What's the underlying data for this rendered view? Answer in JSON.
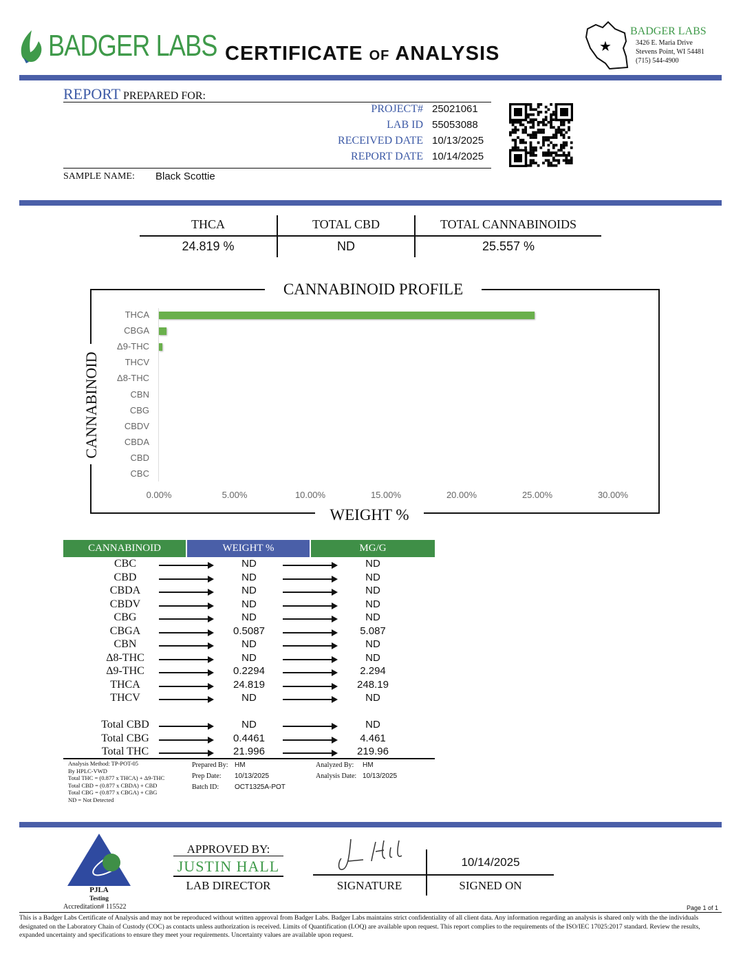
{
  "header": {
    "brand": "BADGER LABS",
    "title_main1": "CERTIFICATE",
    "title_of": "OF",
    "title_main2": "ANALYSIS",
    "address_brand": "BADGER LABS",
    "address1": "3426 E. Maria Drive",
    "address2": "Stevens Point, WI 54481",
    "phone": "(715) 544-4900",
    "colors": {
      "brand_green": "#3f9a4a",
      "accent_blue": "#4a5fa8"
    }
  },
  "report": {
    "prepared_big": "REPORT",
    "prepared_small": "PREPARED FOR:",
    "fields": [
      {
        "label": "PROJECT#",
        "value": "25021061"
      },
      {
        "label": "LAB ID",
        "value": "55053088"
      },
      {
        "label": "RECEIVED DATE",
        "value": "10/13/2025"
      },
      {
        "label": "REPORT DATE",
        "value": "10/14/2025"
      }
    ],
    "sample_label": "SAMPLE NAME:",
    "sample_name": "Black Scottie"
  },
  "summary": [
    {
      "label": "THCA",
      "value": "24.819 %"
    },
    {
      "label": "TOTAL CBD",
      "value": "ND"
    },
    {
      "label": "TOTAL CANNABINOIDS",
      "value": "25.557 %"
    }
  ],
  "chart_data": {
    "type": "bar",
    "orientation": "horizontal",
    "title": "CANNABINOID PROFILE",
    "xlabel": "WEIGHT %",
    "ylabel": "CANNABINOID",
    "categories": [
      "THCA",
      "CBGA",
      "Δ9-THC",
      "THCV",
      "Δ8-THC",
      "CBN",
      "CBG",
      "CBDV",
      "CBDA",
      "CBD",
      "CBC"
    ],
    "values": [
      24.819,
      0.5087,
      0.2294,
      0,
      0,
      0,
      0,
      0,
      0,
      0,
      0
    ],
    "xlim": [
      0,
      30
    ],
    "xticks": [
      "0.00%",
      "5.00%",
      "10.00%",
      "15.00%",
      "20.00%",
      "25.00%",
      "30.00%"
    ],
    "grid": false,
    "color": "#6ab04c"
  },
  "table": {
    "headers": [
      "CANNABINOID",
      "WEIGHT %",
      "MG/G"
    ],
    "rows": [
      [
        "CBC",
        "ND",
        "ND"
      ],
      [
        "CBD",
        "ND",
        "ND"
      ],
      [
        "CBDA",
        "ND",
        "ND"
      ],
      [
        "CBDV",
        "ND",
        "ND"
      ],
      [
        "CBG",
        "ND",
        "ND"
      ],
      [
        "CBGA",
        "0.5087",
        "5.087"
      ],
      [
        "CBN",
        "ND",
        "ND"
      ],
      [
        "Δ8-THC",
        "ND",
        "ND"
      ],
      [
        "Δ9-THC",
        "0.2294",
        "2.294"
      ],
      [
        "THCA",
        "24.819",
        "248.19"
      ],
      [
        "THCV",
        "ND",
        "ND"
      ]
    ],
    "totals": [
      [
        "Total CBD",
        "ND",
        "ND"
      ],
      [
        "Total CBG",
        "0.4461",
        "4.461"
      ],
      [
        "Total THC",
        "21.996",
        "219.96"
      ]
    ]
  },
  "notes": {
    "method": [
      "Analysis Method: TP-POT-05",
      "By HPLC-VWD",
      "Total THC = (0.877 x  THCA) + Δ9-THC",
      "Total CBD = (0.877 x  CBDA) + CBD",
      "Total CBG = (0.877 x  CBGA) + CBG",
      "ND = Not Detected"
    ],
    "prepared_by_label": "Prepared By:",
    "prepared_by": "HM",
    "prep_date_label": "Prep Date:",
    "prep_date": "10/13/2025",
    "batch_label": "Batch ID:",
    "batch": "OCT1325A-POT",
    "analyzed_by_label": "Analyzed By:",
    "analyzed_by": "HM",
    "analysis_date_label": "Analysis Date:",
    "analysis_date": "10/13/2025"
  },
  "footer": {
    "pjla": "PJLA",
    "testing": "Testing",
    "accreditation": "Accreditation# 115522",
    "approved_by": "APPROVED BY:",
    "approver": "JUSTIN HALL",
    "role": "LAB DIRECTOR",
    "signature_label": "SIGNATURE",
    "signed_date": "10/14/2025",
    "signed_on_label": "SIGNED ON",
    "page": "Page 1 of 1",
    "disclaimer": "This is a Badger Labs Certificate of Analysis and may not be reproduced without written approval from Badger Labs. Badger Labs maintains strict confidentiality of all client data. Any information regarding an analysis is shared only with the the individuals designated on the Laboratory Chain of Custody (COC) as contacts unless authorization is received. Limits of Quantification (LOQ) are available upon request. This report complies to the requirements of the ISO/IEC 17025:2017 standard. Review the results, expanded uncertainty and specifications to ensure they meet your requirements. Uncertainty values are available upon request."
  }
}
